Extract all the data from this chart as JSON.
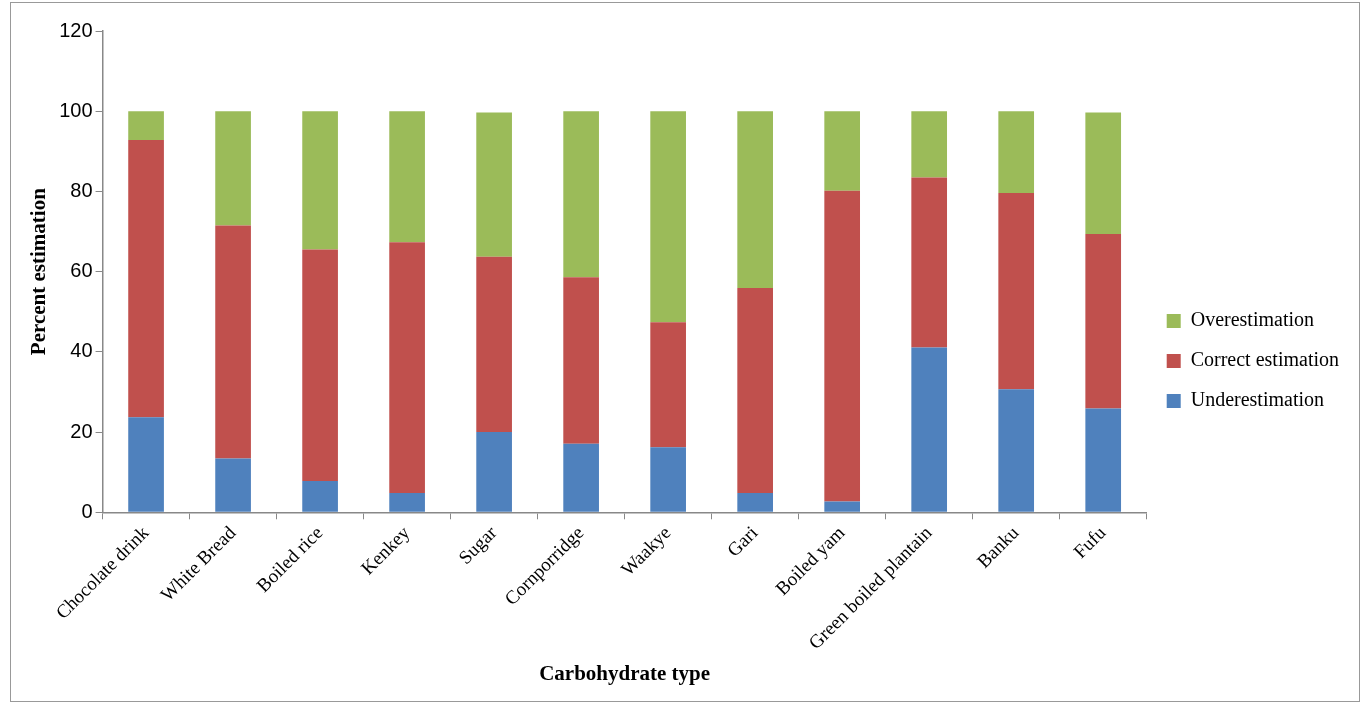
{
  "chart_data": {
    "type": "bar",
    "stacked": true,
    "xlabel": "Carbohydrate type",
    "ylabel": "Percent estimation",
    "categories": [
      "Chocolate drink",
      "White Bread",
      "Boiled rice",
      "Kenkey",
      "Sugar",
      "Cornporridge",
      "Waakye",
      "Gari",
      "Boiled yam",
      "Green boiled plantain",
      "Banku",
      "Fufu"
    ],
    "series": [
      {
        "name": "Underestimation",
        "color": "#4f81bd",
        "values": [
          23.7,
          13.4,
          7.8,
          4.8,
          20,
          17.1,
          16.2,
          4.8,
          2.7,
          41.1,
          30.7,
          25.9
        ]
      },
      {
        "name": "Correct estimation",
        "color": "#c0504d",
        "values": [
          69.1,
          58.1,
          57.7,
          62.5,
          43.7,
          41.5,
          31.2,
          51.1,
          77.5,
          42.4,
          48.9,
          43.5
        ]
      },
      {
        "name": "Overestimation",
        "color": "#9bbb59",
        "values": [
          7.2,
          28.5,
          34.5,
          32.7,
          36,
          41.4,
          52.6,
          44.1,
          19.8,
          16.5,
          20.4,
          30.3
        ]
      }
    ],
    "ylim": [
      0,
      120
    ],
    "yticks": [
      0,
      20,
      40,
      60,
      80,
      100,
      120
    ],
    "grid": false,
    "legend": "right"
  }
}
